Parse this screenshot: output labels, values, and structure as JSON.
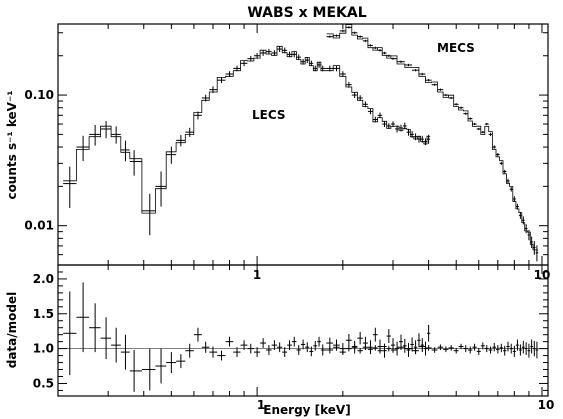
{
  "chart_data": [
    {
      "type": "scatter",
      "panel": "top",
      "title": "WABS x MEKAL",
      "xlabel": "",
      "ylabel": "counts s⁻¹ keV⁻¹",
      "x_scale": "log",
      "y_scale": "log",
      "xlim": [
        0.2,
        10.5
      ],
      "ylim": [
        0.005,
        0.35
      ],
      "x_ticks": [
        {
          "value": 1,
          "label": "1"
        },
        {
          "value": 10,
          "label": "10"
        }
      ],
      "y_ticks": [
        {
          "value": 0.01,
          "label": "0.01"
        },
        {
          "value": 0.1,
          "label": "0.10"
        }
      ],
      "annotations": [
        "LECS",
        "MECS"
      ],
      "series": [
        {
          "name": "LECS",
          "x": [
            0.22,
            0.245,
            0.27,
            0.295,
            0.32,
            0.345,
            0.37,
            0.42,
            0.46,
            0.5,
            0.54,
            0.58,
            0.62,
            0.66,
            0.7,
            0.75,
            0.8,
            0.85,
            0.9,
            0.95,
            1.0,
            1.05,
            1.1,
            1.15,
            1.2,
            1.25,
            1.3,
            1.35,
            1.4,
            1.45,
            1.5,
            1.55,
            1.6,
            1.65,
            1.7,
            1.8,
            1.9,
            2.0,
            2.1,
            2.2,
            2.3,
            2.4,
            2.5,
            2.6,
            2.7,
            2.8,
            2.9,
            3.0,
            3.1,
            3.2,
            3.3,
            3.4,
            3.5,
            3.6,
            3.7,
            3.8,
            3.9,
            4.0
          ],
          "y": [
            0.021,
            0.04,
            0.05,
            0.055,
            0.05,
            0.038,
            0.031,
            0.013,
            0.02,
            0.035,
            0.045,
            0.052,
            0.07,
            0.095,
            0.11,
            0.13,
            0.145,
            0.16,
            0.175,
            0.19,
            0.2,
            0.21,
            0.215,
            0.21,
            0.225,
            0.22,
            0.205,
            0.205,
            0.195,
            0.18,
            0.185,
            0.175,
            0.16,
            0.17,
            0.16,
            0.16,
            0.16,
            0.145,
            0.12,
            0.1,
            0.095,
            0.085,
            0.075,
            0.065,
            0.07,
            0.06,
            0.058,
            0.06,
            0.055,
            0.056,
            0.058,
            0.052,
            0.05,
            0.048,
            0.046,
            0.046,
            0.044,
            0.046
          ],
          "y_err": [
            0.35,
            0.22,
            0.18,
            0.15,
            0.15,
            0.18,
            0.22,
            0.35,
            0.3,
            0.15,
            0.1,
            0.08,
            0.07,
            0.06,
            0.06,
            0.05,
            0.05,
            0.05,
            0.05,
            0.05,
            0.05,
            0.05,
            0.05,
            0.05,
            0.05,
            0.05,
            0.05,
            0.05,
            0.05,
            0.05,
            0.05,
            0.05,
            0.05,
            0.05,
            0.05,
            0.05,
            0.05,
            0.05,
            0.05,
            0.05,
            0.05,
            0.05,
            0.05,
            0.05,
            0.05,
            0.05,
            0.05,
            0.05,
            0.06,
            0.06,
            0.06,
            0.06,
            0.06,
            0.06,
            0.06,
            0.06,
            0.06,
            0.08
          ]
        },
        {
          "name": "MECS",
          "x": [
            1.8,
            1.9,
            2.0,
            2.1,
            2.2,
            2.3,
            2.4,
            2.5,
            2.6,
            2.7,
            2.8,
            2.9,
            3.0,
            3.2,
            3.4,
            3.6,
            3.8,
            4.0,
            4.2,
            4.4,
            4.6,
            4.8,
            5.0,
            5.2,
            5.4,
            5.6,
            5.8,
            6.0,
            6.2,
            6.4,
            6.6,
            6.8,
            7.0,
            7.2,
            7.4,
            7.6,
            7.8,
            8.0,
            8.2,
            8.4,
            8.6,
            8.8,
            9.0,
            9.2,
            9.4,
            9.6
          ],
          "y": [
            0.28,
            0.285,
            0.31,
            0.33,
            0.3,
            0.28,
            0.26,
            0.24,
            0.23,
            0.22,
            0.21,
            0.2,
            0.19,
            0.18,
            0.17,
            0.155,
            0.145,
            0.13,
            0.12,
            0.11,
            0.1,
            0.095,
            0.085,
            0.08,
            0.072,
            0.066,
            0.06,
            0.055,
            0.052,
            0.06,
            0.05,
            0.04,
            0.035,
            0.03,
            0.026,
            0.022,
            0.019,
            0.016,
            0.014,
            0.012,
            0.011,
            0.0095,
            0.0085,
            0.0075,
            0.0068,
            0.0062
          ],
          "y_err": [
            0.02,
            0.02,
            0.02,
            0.02,
            0.02,
            0.02,
            0.02,
            0.02,
            0.02,
            0.02,
            0.02,
            0.02,
            0.02,
            0.02,
            0.02,
            0.02,
            0.02,
            0.02,
            0.02,
            0.02,
            0.02,
            0.02,
            0.02,
            0.02,
            0.02,
            0.02,
            0.02,
            0.02,
            0.02,
            0.02,
            0.03,
            0.03,
            0.03,
            0.03,
            0.03,
            0.04,
            0.04,
            0.05,
            0.05,
            0.06,
            0.07,
            0.08,
            0.09,
            0.1,
            0.12,
            0.14
          ]
        }
      ]
    },
    {
      "type": "scatter",
      "panel": "bottom",
      "xlabel": "Energy [keV]",
      "ylabel": "data/model",
      "x_scale": "log",
      "y_scale": "linear",
      "xlim": [
        0.2,
        10.5
      ],
      "ylim": [
        0.32,
        2.2
      ],
      "reference_line": 1.0,
      "x_ticks": [
        {
          "value": 1,
          "label": "1"
        },
        {
          "value": 10,
          "label": "10"
        }
      ],
      "y_ticks": [
        {
          "value": 0.5,
          "label": "0.5"
        },
        {
          "value": 1.0,
          "label": "1.0"
        },
        {
          "value": 1.5,
          "label": "1.5"
        },
        {
          "value": 2.0,
          "label": "2.0"
        }
      ],
      "series": [
        {
          "name": "LECS",
          "x": [
            0.22,
            0.245,
            0.27,
            0.295,
            0.32,
            0.345,
            0.37,
            0.42,
            0.46,
            0.5,
            0.54,
            0.58,
            0.62,
            0.66,
            0.7,
            0.75,
            0.8,
            0.85,
            0.9,
            0.95,
            1.0,
            1.05,
            1.1,
            1.15,
            1.2,
            1.25,
            1.3,
            1.35,
            1.4,
            1.45,
            1.5,
            1.55,
            1.6,
            1.65,
            1.7,
            1.8,
            1.9,
            2.0,
            2.1,
            2.2,
            2.3,
            2.4,
            2.5,
            2.6,
            2.7,
            2.8,
            2.9,
            3.0,
            3.1,
            3.2,
            3.3,
            3.4,
            3.5,
            3.6,
            3.7,
            3.8,
            3.9,
            4.0
          ],
          "y": [
            1.22,
            1.45,
            1.3,
            1.15,
            1.05,
            0.95,
            0.68,
            0.7,
            0.75,
            0.8,
            0.82,
            0.97,
            1.2,
            1.02,
            0.95,
            0.9,
            1.1,
            0.95,
            1.05,
            1.0,
            0.95,
            1.08,
            0.98,
            1.05,
            1.02,
            0.95,
            1.05,
            1.1,
            0.98,
            1.06,
            1.02,
            0.96,
            1.04,
            1.1,
            0.98,
            1.08,
            1.05,
            1.0,
            1.12,
            1.02,
            1.15,
            1.08,
            1.02,
            1.2,
            1.03,
            0.97,
            1.18,
            1.05,
            1.0,
            1.1,
            1.04,
            0.98,
            1.06,
            1.02,
            1.12,
            1.05,
            1.0,
            1.22
          ],
          "y_err": [
            0.6,
            0.5,
            0.35,
            0.3,
            0.25,
            0.25,
            0.3,
            0.3,
            0.25,
            0.15,
            0.1,
            0.1,
            0.1,
            0.08,
            0.08,
            0.07,
            0.07,
            0.07,
            0.07,
            0.07,
            0.07,
            0.07,
            0.07,
            0.07,
            0.07,
            0.07,
            0.07,
            0.07,
            0.07,
            0.07,
            0.07,
            0.07,
            0.07,
            0.07,
            0.08,
            0.08,
            0.08,
            0.08,
            0.09,
            0.09,
            0.09,
            0.09,
            0.1,
            0.1,
            0.1,
            0.1,
            0.1,
            0.1,
            0.1,
            0.1,
            0.1,
            0.1,
            0.1,
            0.1,
            0.1,
            0.1,
            0.1,
            0.12
          ]
        },
        {
          "name": "MECS",
          "x": [
            1.8,
            1.9,
            2.0,
            2.1,
            2.2,
            2.3,
            2.4,
            2.5,
            2.6,
            2.7,
            2.8,
            2.9,
            3.0,
            3.2,
            3.4,
            3.6,
            3.8,
            4.0,
            4.2,
            4.4,
            4.6,
            4.8,
            5.0,
            5.2,
            5.4,
            5.6,
            5.8,
            6.0,
            6.2,
            6.4,
            6.6,
            6.8,
            7.0,
            7.2,
            7.4,
            7.6,
            7.8,
            8.0,
            8.2,
            8.4,
            8.6,
            8.8,
            9.0,
            9.2,
            9.4,
            9.6
          ],
          "y": [
            0.98,
            1.02,
            0.95,
            1.0,
            1.03,
            0.97,
            1.02,
            0.99,
            1.01,
            0.97,
            1.03,
            1.0,
            0.98,
            1.02,
            1.0,
            0.97,
            1.03,
            1.01,
            0.98,
            1.02,
            0.99,
            1.01,
            0.97,
            1.03,
            1.0,
            0.98,
            1.02,
            0.96,
            1.04,
            1.0,
            0.98,
            1.02,
            0.99,
            1.01,
            0.97,
            1.03,
            1.0,
            0.96,
            1.05,
            0.98,
            1.02,
            1.0,
            0.97,
            1.03,
            1.0,
            0.98
          ],
          "y_err": [
            0.05,
            0.04,
            0.04,
            0.04,
            0.04,
            0.04,
            0.04,
            0.04,
            0.04,
            0.04,
            0.04,
            0.04,
            0.04,
            0.04,
            0.04,
            0.04,
            0.04,
            0.04,
            0.04,
            0.04,
            0.04,
            0.04,
            0.04,
            0.04,
            0.05,
            0.05,
            0.05,
            0.05,
            0.05,
            0.05,
            0.05,
            0.06,
            0.06,
            0.06,
            0.07,
            0.07,
            0.07,
            0.08,
            0.08,
            0.08,
            0.09,
            0.09,
            0.1,
            0.1,
            0.11,
            0.12
          ]
        }
      ]
    }
  ]
}
